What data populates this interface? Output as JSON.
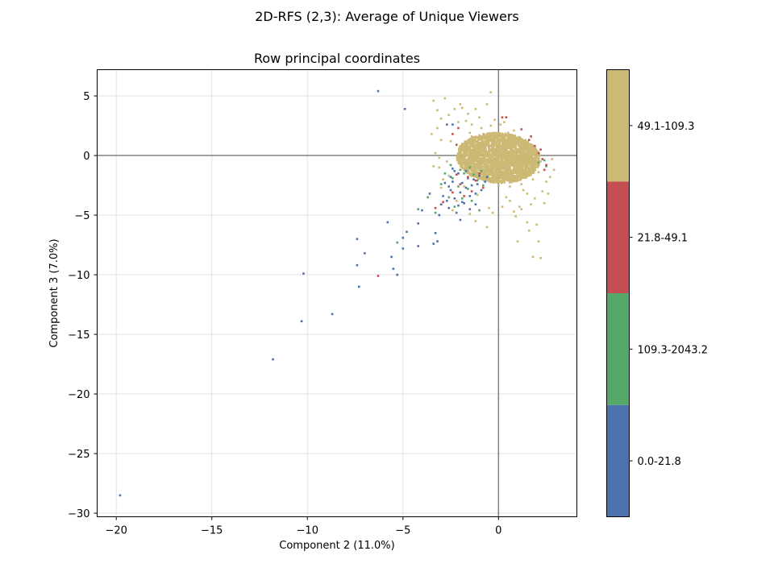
{
  "suptitle": "2D-RFS (2,3): Average of Unique Viewers",
  "chart_data": {
    "type": "scatter",
    "title": "Row principal coordinates",
    "xlabel": "Component 2 (11.0%)",
    "ylabel": "Component 3 (7.0%)",
    "xlim": [
      -21.0,
      4.1
    ],
    "ylim": [
      -30.3,
      7.2
    ],
    "xticks": [
      -20,
      -15,
      -10,
      -5,
      0
    ],
    "xtick_labels": [
      "−20",
      "−15",
      "−10",
      "−5",
      "0"
    ],
    "yticks": [
      5,
      0,
      -5,
      -10,
      -15,
      -20,
      -25,
      -30
    ],
    "ytick_labels": [
      "5",
      "0",
      "−5",
      "−10",
      "−15",
      "−20",
      "−25",
      "−30"
    ],
    "grid": true,
    "reference_lines": {
      "x": 0,
      "y": 0
    },
    "colorbar": {
      "placement": "right",
      "categories": [
        {
          "label": "0.0-21.8",
          "color": "#4c72b0"
        },
        {
          "label": "109.3-2043.2",
          "color": "#55a868"
        },
        {
          "label": "21.8-49.1",
          "color": "#c44e52"
        },
        {
          "label": "49.1-109.3",
          "color": "#ccb974"
        }
      ]
    },
    "series": [
      {
        "name": "0.0-21.8",
        "color": "#4c72b0",
        "points": [
          [
            -19.8,
            -28.5
          ],
          [
            -11.8,
            -17.1
          ],
          [
            -10.3,
            -13.9
          ],
          [
            -10.2,
            -9.9
          ],
          [
            -8.7,
            -13.3
          ],
          [
            -7.4,
            -7.0
          ],
          [
            -7.4,
            -9.2
          ],
          [
            -7.3,
            -11.0
          ],
          [
            -7.0,
            -8.2
          ],
          [
            -6.3,
            5.4
          ],
          [
            -5.8,
            -5.6
          ],
          [
            -5.6,
            -8.5
          ],
          [
            -5.5,
            -9.5
          ],
          [
            -5.3,
            -10.0
          ],
          [
            -5.0,
            -7.8
          ],
          [
            -5.0,
            -6.9
          ],
          [
            -4.9,
            3.9
          ],
          [
            -4.8,
            -6.4
          ],
          [
            -4.2,
            -7.6
          ],
          [
            -4.2,
            -5.7
          ],
          [
            -4.0,
            -4.6
          ],
          [
            -3.6,
            -3.2
          ],
          [
            -3.4,
            -7.4
          ],
          [
            -3.3,
            -6.5
          ],
          [
            -3.2,
            -7.2
          ],
          [
            -3.1,
            -5.0
          ],
          [
            -3.0,
            -4.1
          ],
          [
            -2.9,
            -3.4
          ],
          [
            -2.7,
            -3.8
          ],
          [
            -2.6,
            -2.6
          ],
          [
            -2.5,
            -2.9
          ],
          [
            -2.4,
            -2.2
          ],
          [
            -2.3,
            -3.6
          ],
          [
            -2.2,
            -4.8
          ],
          [
            -2.1,
            -4.2
          ],
          [
            -2.0,
            -3.1
          ],
          [
            -2.0,
            -5.4
          ],
          [
            -1.9,
            -2.3
          ],
          [
            -1.8,
            -4.0
          ],
          [
            -1.7,
            -2.7
          ],
          [
            -1.6,
            -1.9
          ],
          [
            -1.5,
            -3.4
          ],
          [
            -1.5,
            -4.5
          ],
          [
            -1.4,
            -2.5
          ],
          [
            -1.3,
            -2.0
          ],
          [
            -1.2,
            -3.2
          ],
          [
            -1.1,
            -2.4
          ],
          [
            -1.0,
            -1.7
          ],
          [
            -0.9,
            -2.9
          ],
          [
            -0.7,
            -2.2
          ],
          [
            -2.3,
            -1.3
          ],
          [
            -2.5,
            -1.8
          ],
          [
            -2.8,
            -2.3
          ],
          [
            -2.1,
            -1.5
          ],
          [
            -2.6,
            -4.4
          ],
          [
            -1.9,
            -3.9
          ],
          [
            -1.2,
            -4.1
          ],
          [
            -0.6,
            -1.8
          ],
          [
            -1.7,
            -1.3
          ],
          [
            -2.4,
            2.6
          ],
          [
            -2.7,
            2.6
          ],
          [
            -2.4,
            -1.1
          ]
        ]
      },
      {
        "name": "109.3-2043.2",
        "color": "#55a868",
        "points": [
          [
            -5.3,
            -7.3
          ],
          [
            -4.2,
            -4.5
          ],
          [
            -3.7,
            -3.5
          ],
          [
            -3.3,
            -4.8
          ],
          [
            -3.0,
            -2.4
          ],
          [
            -2.8,
            -1.5
          ],
          [
            -2.6,
            -3.5
          ],
          [
            -2.4,
            -1.9
          ],
          [
            -2.3,
            -4.3
          ],
          [
            -2.1,
            -2.6
          ],
          [
            -2.0,
            -1.2
          ],
          [
            -1.9,
            -3.6
          ],
          [
            -1.8,
            -1.5
          ],
          [
            -1.6,
            -2.8
          ],
          [
            -1.5,
            -1.0
          ],
          [
            -1.4,
            -3.8
          ],
          [
            -1.3,
            -1.6
          ],
          [
            -1.1,
            -2.1
          ],
          [
            -0.9,
            -1.3
          ],
          [
            -0.8,
            -2.5
          ],
          [
            2.4,
            -0.4
          ],
          [
            2.5,
            -0.9
          ],
          [
            2.1,
            -0.6
          ],
          [
            -2.5,
            -0.8
          ],
          [
            -1.0,
            -4.6
          ]
        ]
      },
      {
        "name": "21.8-49.1",
        "color": "#c44e52",
        "points": [
          [
            -6.3,
            -10.1
          ],
          [
            -3.3,
            -4.4
          ],
          [
            -2.9,
            -3.9
          ],
          [
            -2.4,
            -3.1
          ],
          [
            -2.2,
            -1.6
          ],
          [
            -2.0,
            -2.4
          ],
          [
            -1.8,
            -3.4
          ],
          [
            -1.6,
            -1.8
          ],
          [
            -1.4,
            -3.0
          ],
          [
            -1.2,
            -2.1
          ],
          [
            -1.0,
            -1.5
          ],
          [
            -0.8,
            -2.7
          ],
          [
            0.2,
            3.2
          ],
          [
            0.4,
            3.2
          ],
          [
            1.2,
            2.2
          ],
          [
            1.6,
            1.3
          ],
          [
            1.9,
            0.8
          ],
          [
            2.1,
            0.2
          ],
          [
            2.3,
            -0.3
          ],
          [
            2.5,
            -0.8
          ],
          [
            2.4,
            -1.2
          ],
          [
            2.2,
            0.5
          ],
          [
            1.7,
            1.6
          ],
          [
            -2.4,
            1.8
          ],
          [
            -2.1,
            2.3
          ],
          [
            -2.2,
            0.9
          ]
        ]
      },
      {
        "name": "49.1-109.3",
        "color": "#ccb974",
        "points": [
          [
            -3.4,
            4.6
          ],
          [
            -3.2,
            3.8
          ],
          [
            -3.0,
            3.1
          ],
          [
            -2.8,
            4.8
          ],
          [
            -2.6,
            3.4
          ],
          [
            -3.5,
            1.8
          ],
          [
            -3.1,
            -1.0
          ],
          [
            -2.9,
            -2.0
          ],
          [
            -2.7,
            -0.5
          ],
          [
            -2.5,
            1.2
          ],
          [
            -2.3,
            3.9
          ],
          [
            -2.1,
            2.8
          ],
          [
            -1.9,
            4.0
          ],
          [
            -1.6,
            3.5
          ],
          [
            -1.4,
            2.6
          ],
          [
            -1.2,
            3.9
          ],
          [
            -0.6,
            4.3
          ],
          [
            -0.4,
            5.3
          ],
          [
            -0.2,
            3.0
          ],
          [
            0.1,
            2.6
          ],
          [
            0.3,
            2.8
          ],
          [
            0.8,
            2.1
          ],
          [
            -2.4,
            -4.6
          ],
          [
            -1.5,
            -4.9
          ],
          [
            -1.2,
            -5.5
          ],
          [
            -0.6,
            -6.0
          ],
          [
            -0.3,
            -4.8
          ],
          [
            0.2,
            -4.3
          ],
          [
            0.6,
            -3.8
          ],
          [
            0.9,
            -5.1
          ],
          [
            1.0,
            -7.2
          ],
          [
            1.2,
            -4.5
          ],
          [
            1.5,
            -3.2
          ],
          [
            1.6,
            -6.3
          ],
          [
            1.7,
            -4.1
          ],
          [
            1.8,
            -8.5
          ],
          [
            2.0,
            -5.8
          ],
          [
            2.1,
            -7.2
          ],
          [
            2.2,
            -8.6
          ],
          [
            2.3,
            -3.0
          ],
          [
            2.4,
            -4.0
          ],
          [
            2.5,
            -2.2
          ],
          [
            2.7,
            -1.8
          ],
          [
            2.6,
            -3.2
          ],
          [
            1.9,
            -3.6
          ],
          [
            1.3,
            -2.9
          ],
          [
            0.4,
            -3.5
          ],
          [
            -0.5,
            -4.4
          ],
          [
            -1.1,
            -3.3
          ],
          [
            -1.8,
            -2.6
          ],
          [
            -2.6,
            -1.7
          ],
          [
            -3.1,
            -0.2
          ],
          [
            -2.0,
            0.8
          ],
          [
            -1.5,
            1.9
          ],
          [
            -0.9,
            2.3
          ],
          [
            -0.4,
            2.5
          ],
          [
            0.5,
            1.9
          ],
          [
            1.1,
            1.5
          ],
          [
            1.6,
            0.9
          ],
          [
            2.0,
            0.4
          ],
          [
            2.2,
            -0.5
          ],
          [
            2.1,
            -1.4
          ],
          [
            1.8,
            -2.0
          ],
          [
            1.2,
            -2.4
          ],
          [
            0.6,
            -2.6
          ],
          [
            0.0,
            -2.5
          ],
          [
            -0.7,
            -2.0
          ],
          [
            -1.3,
            -1.4
          ],
          [
            -1.8,
            -0.6
          ],
          [
            -2.0,
            0.2
          ],
          [
            -1.9,
            1.0
          ],
          [
            -1.4,
            1.6
          ],
          [
            -0.8,
            1.8
          ],
          [
            -0.2,
            1.7
          ],
          [
            0.4,
            1.3
          ],
          [
            0.9,
            0.8
          ],
          [
            1.3,
            0.2
          ],
          [
            1.5,
            -0.5
          ],
          [
            1.4,
            -1.1
          ],
          [
            1.0,
            -1.6
          ],
          [
            0.4,
            -1.9
          ],
          [
            -0.2,
            -1.9
          ],
          [
            -0.8,
            -1.5
          ],
          [
            -1.2,
            -0.9
          ],
          [
            -1.4,
            -0.2
          ],
          [
            -1.3,
            0.5
          ],
          [
            -0.9,
            1.0
          ],
          [
            -0.3,
            1.2
          ],
          [
            0.3,
            1.0
          ],
          [
            0.7,
            0.5
          ],
          [
            0.9,
            -0.1
          ],
          [
            0.8,
            -0.7
          ],
          [
            0.4,
            -1.1
          ],
          [
            -0.1,
            -1.2
          ],
          [
            -0.6,
            -0.9
          ],
          [
            -0.9,
            -0.4
          ],
          [
            -0.9,
            0.2
          ],
          [
            -0.5,
            0.6
          ],
          [
            0.0,
            0.6
          ],
          [
            0.4,
            0.2
          ],
          [
            0.5,
            -0.3
          ],
          [
            0.1,
            -0.6
          ],
          [
            -0.4,
            -0.3
          ],
          [
            -0.2,
            0.1
          ],
          [
            -3.2,
            2.3
          ],
          [
            -3.3,
            0.2
          ],
          [
            -3.4,
            -0.9
          ],
          [
            -3.0,
            1.3
          ],
          [
            1.1,
            -4.3
          ],
          [
            0.8,
            -4.7
          ],
          [
            1.5,
            -5.6
          ],
          [
            -3.0,
            -2.7
          ],
          [
            -2.2,
            -3.8
          ],
          [
            2.9,
            -1.2
          ],
          [
            2.8,
            -0.3
          ],
          [
            -2.0,
            4.3
          ],
          [
            -1.0,
            3.2
          ],
          [
            -1.7,
            2.9
          ]
        ]
      }
    ],
    "dense_cluster": {
      "series": "49.1-109.3",
      "center": [
        0.0,
        -0.2
      ],
      "spread": [
        1.45,
        1.45
      ]
    }
  }
}
